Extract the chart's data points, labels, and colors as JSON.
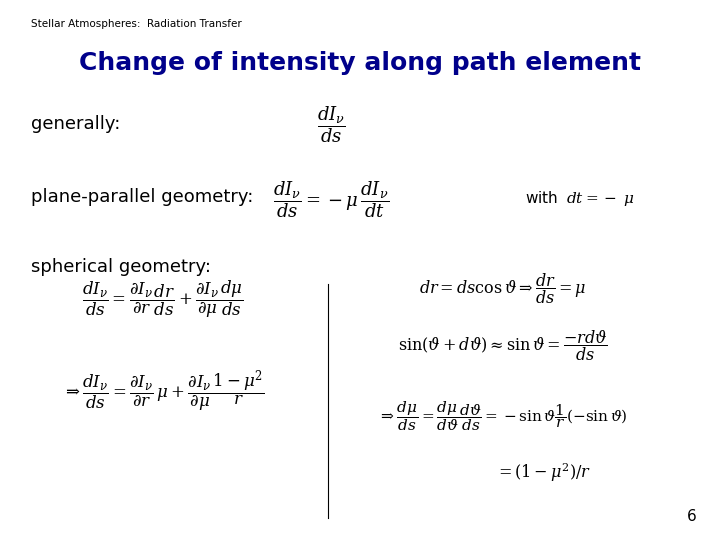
{
  "title": "Change of intensity along path element",
  "header": "Stellar Atmospheres:  Radiation Transfer",
  "background_color": "#ffffff",
  "title_color": "#00008B",
  "header_color": "#000000",
  "text_color": "#000000",
  "page_number": "6",
  "label_generally": "generally:",
  "label_pp": "plane-parallel geometry:",
  "label_sph": "spherical geometry:",
  "fs_header": 7.5,
  "fs_title": 18,
  "fs_label": 13,
  "fs_eq": 13,
  "fs_eq_small": 11
}
